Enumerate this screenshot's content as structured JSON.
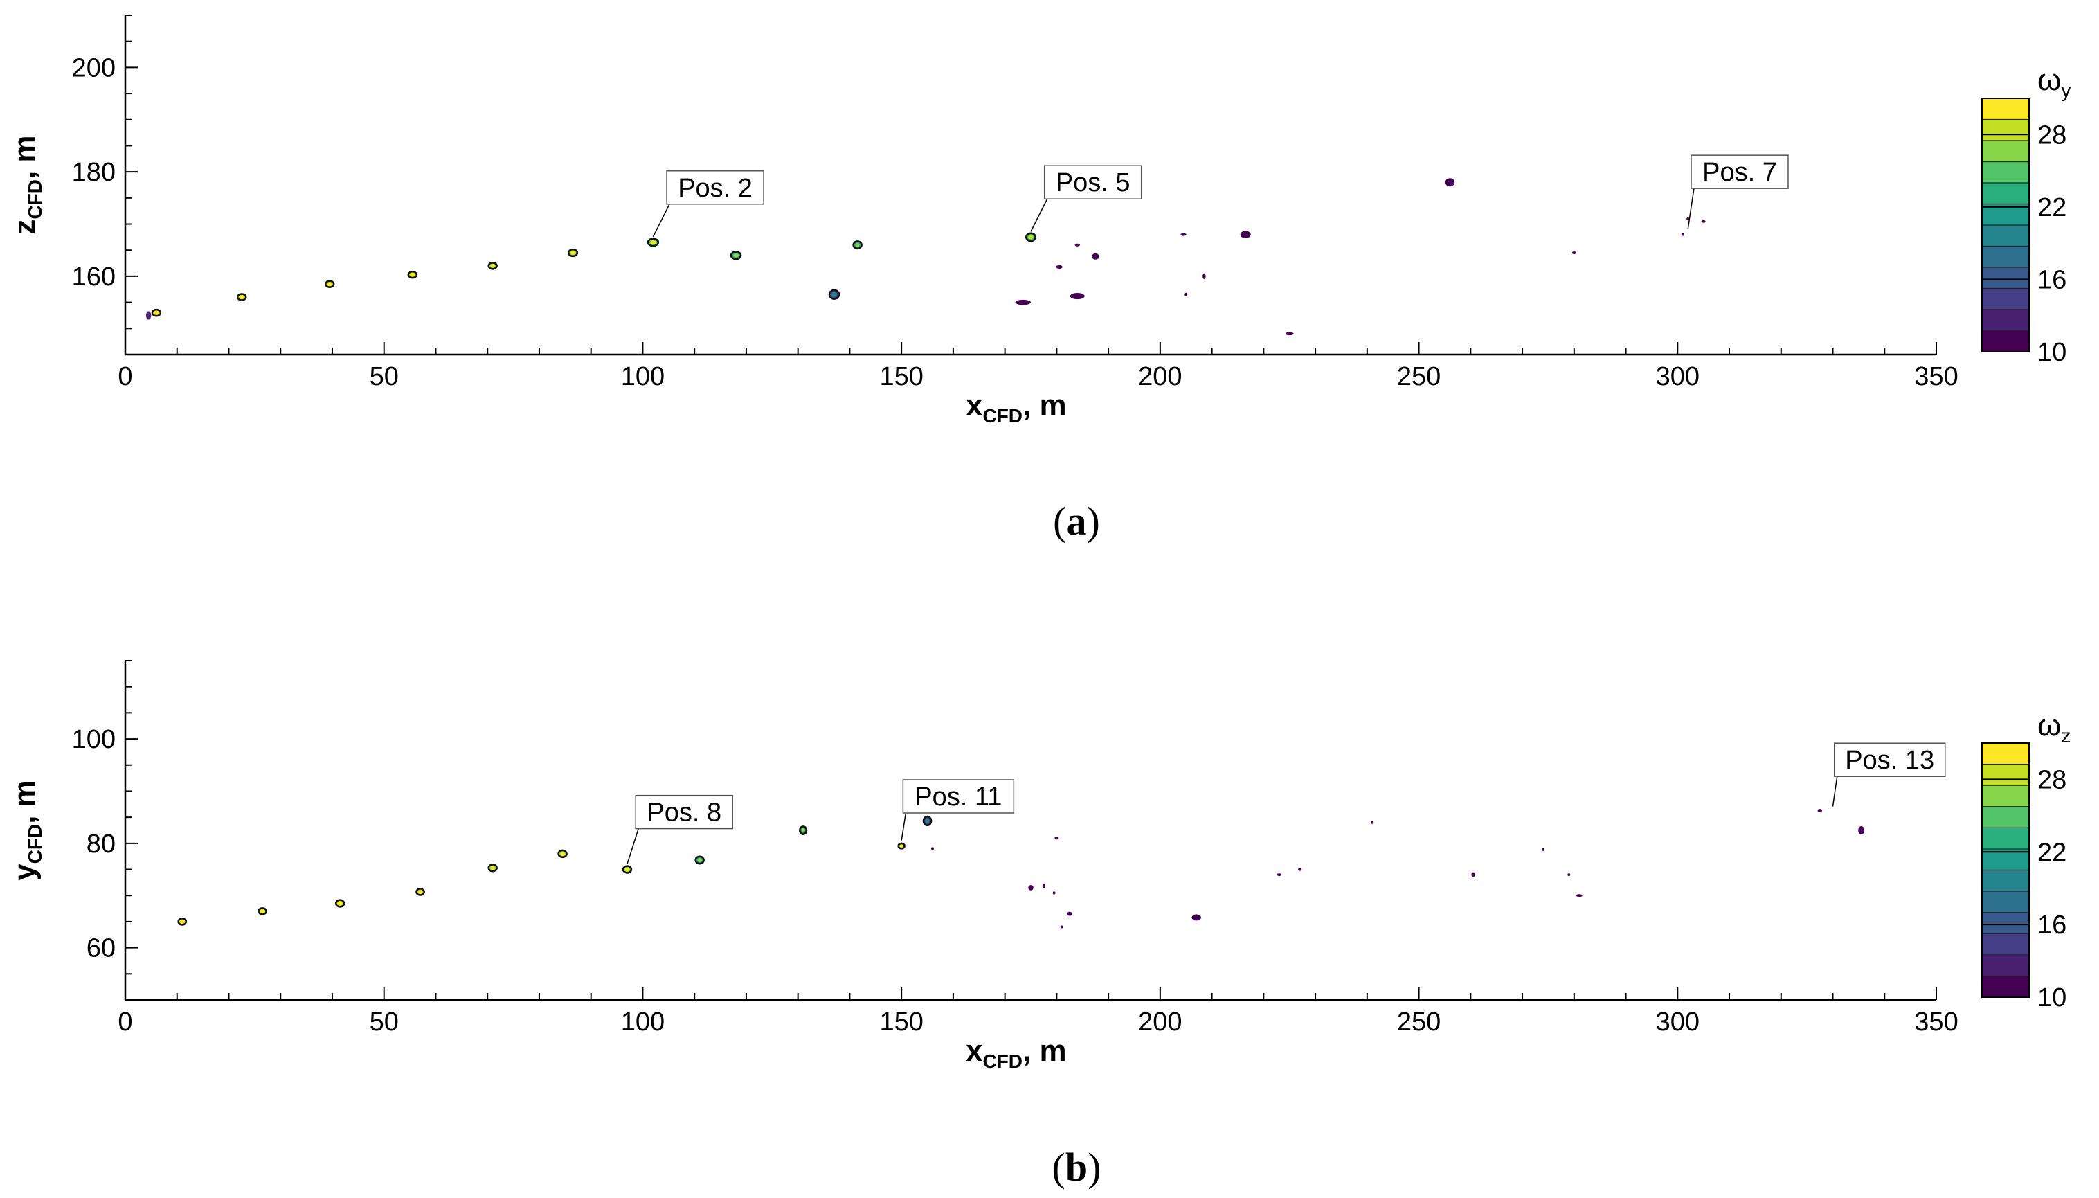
{
  "colors": {
    "colormap": [
      "#440154",
      "#482173",
      "#433e85",
      "#38598c",
      "#2d708e",
      "#25858e",
      "#1e9b8a",
      "#2ab07f",
      "#52c569",
      "#86d549",
      "#c2df23",
      "#fde725"
    ],
    "marker_outline": "#111111"
  },
  "chart_data": [
    {
      "type": "scatter",
      "panel_label": "a",
      "xlabel": "x",
      "xlabel_sub": "CFD",
      "xlabel_unit": ", m",
      "ylabel": "z",
      "ylabel_sub": "CFD",
      "ylabel_unit": ", m",
      "xlim": [
        0,
        350
      ],
      "ylim": [
        145,
        210
      ],
      "xticks": [
        "0",
        "50",
        "100",
        "150",
        "200",
        "250",
        "300",
        "350"
      ],
      "xtick_values": [
        0,
        50,
        100,
        150,
        200,
        250,
        300,
        350
      ],
      "yticks": [
        "160",
        "180",
        "200"
      ],
      "ytick_values": [
        160,
        180,
        200
      ],
      "colorbar": {
        "title": "ω",
        "title_sub": "y",
        "range": [
          10,
          31
        ],
        "tick_labels": [
          "10",
          "16",
          "22",
          "28"
        ],
        "tick_values": [
          10,
          16,
          22,
          28
        ]
      },
      "annotations": [
        {
          "text": "Pos. 2",
          "x": 102,
          "y": 166.5,
          "label_x": 114,
          "label_y": 177
        },
        {
          "text": "Pos. 5",
          "x": 175,
          "y": 167.5,
          "label_x": 187,
          "label_y": 178
        },
        {
          "text": "Pos. 7",
          "x": 302,
          "y": 168,
          "label_x": 312,
          "label_y": 180
        }
      ],
      "points": [
        {
          "x": 6,
          "y": 153,
          "w": 1.6,
          "h": 1.2,
          "value": 30
        },
        {
          "x": 22.5,
          "y": 156,
          "w": 1.6,
          "h": 1.2,
          "value": 29
        },
        {
          "x": 39.5,
          "y": 158.5,
          "w": 1.6,
          "h": 1.2,
          "value": 28
        },
        {
          "x": 55.5,
          "y": 160.3,
          "w": 1.6,
          "h": 1.2,
          "value": 28
        },
        {
          "x": 71,
          "y": 162,
          "w": 1.6,
          "h": 1.2,
          "value": 27
        },
        {
          "x": 86.5,
          "y": 164.5,
          "w": 1.7,
          "h": 1.3,
          "value": 27
        },
        {
          "x": 102,
          "y": 166.5,
          "w": 2.0,
          "h": 1.4,
          "value": 25
        },
        {
          "x": 118,
          "y": 164,
          "w": 1.9,
          "h": 1.4,
          "value": 21
        },
        {
          "x": 141.5,
          "y": 166,
          "w": 1.6,
          "h": 1.4,
          "value": 21
        },
        {
          "x": 137,
          "y": 156.5,
          "w": 1.9,
          "h": 1.7,
          "value": 14
        },
        {
          "x": 175,
          "y": 167.5,
          "w": 1.8,
          "h": 1.5,
          "value": 23
        },
        {
          "x": 256,
          "y": 178,
          "w": 1.8,
          "h": 1.6,
          "value": 11
        },
        {
          "x": 216.5,
          "y": 168,
          "w": 2.0,
          "h": 1.4,
          "value": 11
        },
        {
          "x": 184,
          "y": 156.2,
          "w": 2.8,
          "h": 1.2,
          "value": 11
        },
        {
          "x": 173.5,
          "y": 155,
          "w": 3.0,
          "h": 1.0,
          "value": 11
        },
        {
          "x": 187.5,
          "y": 163.8,
          "w": 1.4,
          "h": 1.2,
          "value": 11
        },
        {
          "x": 180.5,
          "y": 161.8,
          "w": 1.2,
          "h": 0.7,
          "value": 11
        },
        {
          "x": 184,
          "y": 166,
          "w": 1.0,
          "h": 0.4,
          "value": 11
        },
        {
          "x": 204.5,
          "y": 168,
          "w": 1.1,
          "h": 0.5,
          "value": 11
        },
        {
          "x": 208.5,
          "y": 160,
          "w": 0.6,
          "h": 1.1,
          "value": 11
        },
        {
          "x": 205,
          "y": 156.5,
          "w": 0.5,
          "h": 0.7,
          "value": 11
        },
        {
          "x": 225,
          "y": 149,
          "w": 1.6,
          "h": 0.6,
          "value": 11
        },
        {
          "x": 280,
          "y": 164.5,
          "w": 0.8,
          "h": 0.4,
          "value": 11
        },
        {
          "x": 302,
          "y": 171,
          "w": 0.5,
          "h": 0.6,
          "value": 11
        },
        {
          "x": 305,
          "y": 170.5,
          "w": 0.8,
          "h": 0.5,
          "value": 11
        },
        {
          "x": 301,
          "y": 168,
          "w": 0.4,
          "h": 0.5,
          "value": 11
        },
        {
          "x": 4.5,
          "y": 152.5,
          "w": 1.0,
          "h": 1.6,
          "value": 12
        }
      ]
    },
    {
      "type": "scatter",
      "panel_label": "b",
      "xlabel": "x",
      "xlabel_sub": "CFD",
      "xlabel_unit": ", m",
      "ylabel": "y",
      "ylabel_sub": "CFD",
      "ylabel_unit": ", m",
      "xlim": [
        0,
        350
      ],
      "ylim": [
        50,
        115
      ],
      "xticks": [
        "0",
        "50",
        "100",
        "150",
        "200",
        "250",
        "300",
        "350"
      ],
      "xtick_values": [
        0,
        50,
        100,
        150,
        200,
        250,
        300,
        350
      ],
      "yticks": [
        "60",
        "80",
        "100"
      ],
      "ytick_values": [
        60,
        80,
        100
      ],
      "colorbar": {
        "title": "ω",
        "title_sub": "z",
        "range": [
          10,
          31
        ],
        "tick_labels": [
          "10",
          "16",
          "22",
          "28"
        ],
        "tick_values": [
          10,
          16,
          22,
          28
        ]
      },
      "annotations": [
        {
          "text": "Pos. 8",
          "x": 97,
          "y": 75,
          "label_x": 108,
          "label_y": 86
        },
        {
          "text": "Pos. 11",
          "x": 150,
          "y": 79.5,
          "label_x": 161,
          "label_y": 89
        },
        {
          "text": "Pos. 13",
          "x": 330,
          "y": 86,
          "label_x": 341,
          "label_y": 96
        }
      ],
      "points": [
        {
          "x": 11,
          "y": 65,
          "w": 1.5,
          "h": 1.2,
          "value": 30
        },
        {
          "x": 26.5,
          "y": 67,
          "w": 1.5,
          "h": 1.2,
          "value": 29
        },
        {
          "x": 41.5,
          "y": 68.5,
          "w": 1.6,
          "h": 1.3,
          "value": 28
        },
        {
          "x": 57,
          "y": 70.7,
          "w": 1.5,
          "h": 1.2,
          "value": 28
        },
        {
          "x": 71,
          "y": 75.3,
          "w": 1.6,
          "h": 1.3,
          "value": 27
        },
        {
          "x": 84.5,
          "y": 78,
          "w": 1.6,
          "h": 1.3,
          "value": 27
        },
        {
          "x": 97,
          "y": 75,
          "w": 1.6,
          "h": 1.3,
          "value": 26
        },
        {
          "x": 111,
          "y": 76.8,
          "w": 1.6,
          "h": 1.4,
          "value": 21
        },
        {
          "x": 131,
          "y": 82.5,
          "w": 1.3,
          "h": 1.5,
          "value": 20
        },
        {
          "x": 150,
          "y": 79.5,
          "w": 1.2,
          "h": 1.0,
          "value": 27
        },
        {
          "x": 155,
          "y": 84.3,
          "w": 1.5,
          "h": 1.7,
          "value": 14
        },
        {
          "x": 156,
          "y": 79,
          "w": 0.3,
          "h": 0.3,
          "value": 11
        },
        {
          "x": 207,
          "y": 65.8,
          "w": 1.8,
          "h": 1.2,
          "value": 11
        },
        {
          "x": 175,
          "y": 71.5,
          "w": 1.0,
          "h": 1.0,
          "value": 11
        },
        {
          "x": 177.5,
          "y": 71.8,
          "w": 0.5,
          "h": 0.8,
          "value": 11
        },
        {
          "x": 179.5,
          "y": 70.5,
          "w": 0.4,
          "h": 0.6,
          "value": 11
        },
        {
          "x": 180,
          "y": 81,
          "w": 0.8,
          "h": 0.3,
          "value": 11
        },
        {
          "x": 181,
          "y": 64,
          "w": 0.6,
          "h": 0.2,
          "value": 11
        },
        {
          "x": 182.5,
          "y": 66.5,
          "w": 1.0,
          "h": 0.8,
          "value": 11
        },
        {
          "x": 223,
          "y": 74,
          "w": 0.8,
          "h": 0.5,
          "value": 11
        },
        {
          "x": 227,
          "y": 75,
          "w": 0.7,
          "h": 0.4,
          "value": 11
        },
        {
          "x": 241,
          "y": 84,
          "w": 0.2,
          "h": 0.2,
          "value": 11
        },
        {
          "x": 260.5,
          "y": 74,
          "w": 0.7,
          "h": 0.9,
          "value": 11
        },
        {
          "x": 274,
          "y": 78.8,
          "w": 0.3,
          "h": 0.5,
          "value": 11
        },
        {
          "x": 279,
          "y": 74,
          "w": 0.3,
          "h": 0.3,
          "value": 11
        },
        {
          "x": 281,
          "y": 70,
          "w": 1.2,
          "h": 0.5,
          "value": 11
        },
        {
          "x": 327.5,
          "y": 86.3,
          "w": 0.9,
          "h": 0.6,
          "value": 11
        },
        {
          "x": 335.5,
          "y": 82.5,
          "w": 1.2,
          "h": 1.6,
          "value": 11
        }
      ]
    }
  ]
}
